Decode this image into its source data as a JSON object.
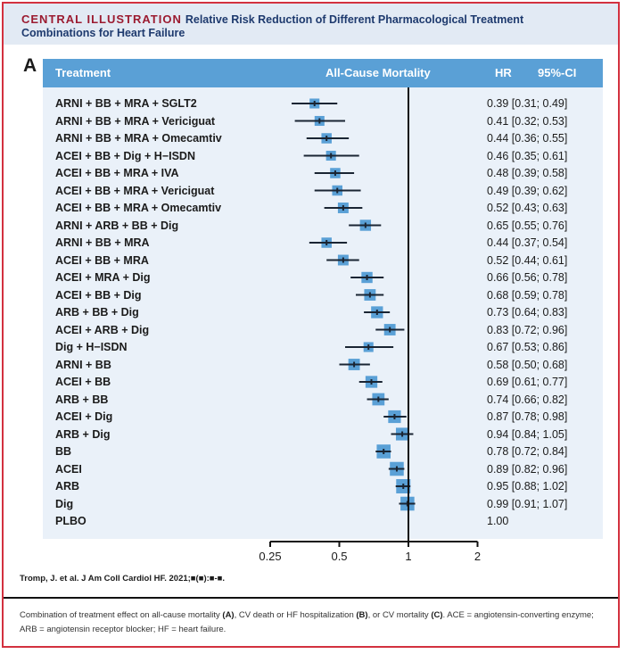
{
  "figure": {
    "kicker": "CENTRAL ILLUSTRATION",
    "title": "Relative Risk Reduction of Different Pharmacological Treatment Combinations for Heart Failure",
    "panel_letter": "A",
    "citation": "Tromp, J. et al. J Am Coll Cardiol HF. 2021;■(■):■-■.",
    "caption_parts": [
      {
        "text": "Combination of treatment effect on all-cause mortality ",
        "bold": false
      },
      {
        "text": "(A)",
        "bold": true
      },
      {
        "text": ", CV death or HF hospitalization ",
        "bold": false
      },
      {
        "text": "(B)",
        "bold": true
      },
      {
        "text": ", or CV mortality ",
        "bold": false
      },
      {
        "text": "(C)",
        "bold": true
      },
      {
        "text": ". ACE = angiotensin-converting enzyme; ARB = angiotensin receptor blocker; HF = heart failure.",
        "bold": false
      }
    ]
  },
  "colors": {
    "frame": "#d3313f",
    "kicker": "#9b1b30",
    "title": "#1e3a6e",
    "header_band": "#5aa0d6",
    "panel": "#eaf1f9",
    "marker": "#5aa0d6",
    "ci_line": "#1a2533"
  },
  "chart_data": {
    "type": "forest",
    "title": "All-Cause Mortality",
    "columns": {
      "treatment": "Treatment",
      "effect": "All-Cause Mortality",
      "hr": "HR",
      "ci": "95%-CI"
    },
    "x_scale": "log2",
    "xlim": [
      0.25,
      2
    ],
    "x_ticks": [
      0.25,
      0.5,
      1,
      2
    ],
    "x_tick_labels": [
      "0.25",
      "0.5",
      "1",
      "2"
    ],
    "reference_line": 1,
    "rows": [
      {
        "label": "ARNI + BB + MRA + SGLT2",
        "hr": 0.39,
        "lo": 0.31,
        "hi": 0.49,
        "text": "0.39 [0.31; 0.49]",
        "weight": 0.45
      },
      {
        "label": "ARNI + BB + MRA + Vericiguat",
        "hr": 0.41,
        "lo": 0.32,
        "hi": 0.53,
        "text": "0.41 [0.32; 0.53]",
        "weight": 0.45
      },
      {
        "label": "ARNI + BB + MRA + Omecamtiv",
        "hr": 0.44,
        "lo": 0.36,
        "hi": 0.55,
        "text": "0.44 [0.36; 0.55]",
        "weight": 0.5
      },
      {
        "label": "ACEI + BB + Dig + H−ISDN",
        "hr": 0.46,
        "lo": 0.35,
        "hi": 0.61,
        "text": "0.46 [0.35; 0.61]",
        "weight": 0.45
      },
      {
        "label": "ACEI + BB + MRA + IVA",
        "hr": 0.48,
        "lo": 0.39,
        "hi": 0.58,
        "text": "0.48 [0.39; 0.58]",
        "weight": 0.5
      },
      {
        "label": "ACEI + BB + MRA + Vericiguat",
        "hr": 0.49,
        "lo": 0.39,
        "hi": 0.62,
        "text": "0.49 [0.39; 0.62]",
        "weight": 0.5
      },
      {
        "label": "ACEI + BB + MRA + Omecamtiv",
        "hr": 0.52,
        "lo": 0.43,
        "hi": 0.63,
        "text": "0.52 [0.43; 0.63]",
        "weight": 0.55
      },
      {
        "label": "ARNI + ARB + BB + Dig",
        "hr": 0.65,
        "lo": 0.55,
        "hi": 0.76,
        "text": "0.65 [0.55; 0.76]",
        "weight": 0.6
      },
      {
        "label": "ARNI + BB + MRA",
        "hr": 0.44,
        "lo": 0.37,
        "hi": 0.54,
        "text": "0.44 [0.37; 0.54]",
        "weight": 0.5
      },
      {
        "label": "ACEI + BB + MRA",
        "hr": 0.52,
        "lo": 0.44,
        "hi": 0.61,
        "text": "0.52 [0.44; 0.61]",
        "weight": 0.55
      },
      {
        "label": "ACEI + MRA + Dig",
        "hr": 0.66,
        "lo": 0.56,
        "hi": 0.78,
        "text": "0.66 [0.56; 0.78]",
        "weight": 0.6
      },
      {
        "label": "ACEI + BB + Dig",
        "hr": 0.68,
        "lo": 0.59,
        "hi": 0.78,
        "text": "0.68 [0.59; 0.78]",
        "weight": 0.65
      },
      {
        "label": "ARB + BB + Dig",
        "hr": 0.73,
        "lo": 0.64,
        "hi": 0.83,
        "text": "0.73 [0.64; 0.83]",
        "weight": 0.7
      },
      {
        "label": "ACEI + ARB + Dig",
        "hr": 0.83,
        "lo": 0.72,
        "hi": 0.96,
        "text": "0.83 [0.72; 0.96]",
        "weight": 0.65
      },
      {
        "label": "Dig + H−ISDN",
        "hr": 0.67,
        "lo": 0.53,
        "hi": 0.86,
        "text": "0.67 [0.53; 0.86]",
        "weight": 0.45
      },
      {
        "label": "ARNI + BB",
        "hr": 0.58,
        "lo": 0.5,
        "hi": 0.68,
        "text": "0.58 [0.50; 0.68]",
        "weight": 0.65
      },
      {
        "label": "ACEI + BB",
        "hr": 0.69,
        "lo": 0.61,
        "hi": 0.77,
        "text": "0.69 [0.61; 0.77]",
        "weight": 0.7
      },
      {
        "label": "ARB + BB",
        "hr": 0.74,
        "lo": 0.66,
        "hi": 0.82,
        "text": "0.74 [0.66; 0.82]",
        "weight": 0.75
      },
      {
        "label": "ACEI + Dig",
        "hr": 0.87,
        "lo": 0.78,
        "hi": 0.98,
        "text": "0.87 [0.78; 0.98]",
        "weight": 0.8
      },
      {
        "label": "ARB + Dig",
        "hr": 0.94,
        "lo": 0.84,
        "hi": 1.05,
        "text": "0.94 [0.84; 1.05]",
        "weight": 0.8
      },
      {
        "label": "BB",
        "hr": 0.78,
        "lo": 0.72,
        "hi": 0.84,
        "text": "0.78 [0.72; 0.84]",
        "weight": 0.95
      },
      {
        "label": "ACEI",
        "hr": 0.89,
        "lo": 0.82,
        "hi": 0.96,
        "text": "0.89 [0.82; 0.96]",
        "weight": 0.95
      },
      {
        "label": "ARB",
        "hr": 0.95,
        "lo": 0.88,
        "hi": 1.02,
        "text": "0.95 [0.88; 1.02]",
        "weight": 1.0
      },
      {
        "label": "Dig",
        "hr": 0.99,
        "lo": 0.91,
        "hi": 1.07,
        "text": "0.99 [0.91; 1.07]",
        "weight": 0.95
      },
      {
        "label": "PLBO",
        "hr": null,
        "lo": null,
        "hi": null,
        "text": "1.00",
        "weight": null
      }
    ]
  }
}
